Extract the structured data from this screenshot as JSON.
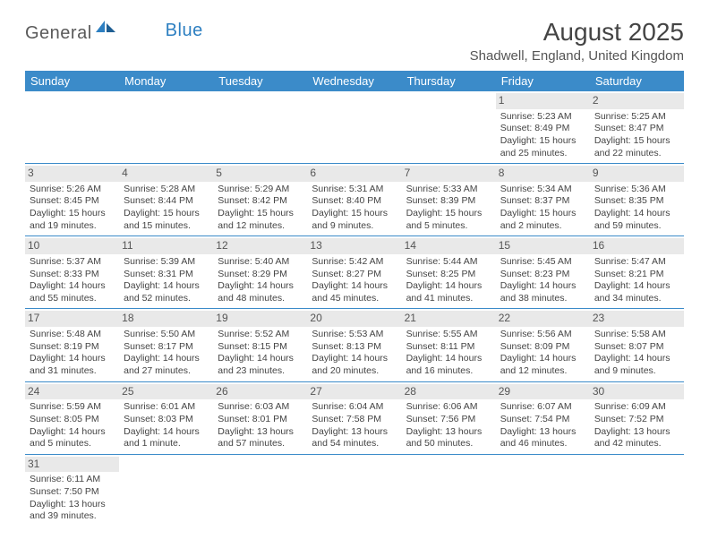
{
  "logo": {
    "part1": "General",
    "part2": "Blue"
  },
  "title": "August 2025",
  "location": "Shadwell, England, United Kingdom",
  "colors": {
    "header_bg": "#3b8bc9",
    "header_text": "#ffffff",
    "daynum_bg": "#e9e9e9",
    "row_border": "#3b8bc9",
    "logo_gray": "#5a5a5a",
    "logo_blue": "#2d7fc1"
  },
  "day_headers": [
    "Sunday",
    "Monday",
    "Tuesday",
    "Wednesday",
    "Thursday",
    "Friday",
    "Saturday"
  ],
  "weeks": [
    [
      {
        "empty": true
      },
      {
        "empty": true
      },
      {
        "empty": true
      },
      {
        "empty": true
      },
      {
        "empty": true
      },
      {
        "day": "1",
        "sunrise": "Sunrise: 5:23 AM",
        "sunset": "Sunset: 8:49 PM",
        "daylight": "Daylight: 15 hours and 25 minutes."
      },
      {
        "day": "2",
        "sunrise": "Sunrise: 5:25 AM",
        "sunset": "Sunset: 8:47 PM",
        "daylight": "Daylight: 15 hours and 22 minutes."
      }
    ],
    [
      {
        "day": "3",
        "sunrise": "Sunrise: 5:26 AM",
        "sunset": "Sunset: 8:45 PM",
        "daylight": "Daylight: 15 hours and 19 minutes."
      },
      {
        "day": "4",
        "sunrise": "Sunrise: 5:28 AM",
        "sunset": "Sunset: 8:44 PM",
        "daylight": "Daylight: 15 hours and 15 minutes."
      },
      {
        "day": "5",
        "sunrise": "Sunrise: 5:29 AM",
        "sunset": "Sunset: 8:42 PM",
        "daylight": "Daylight: 15 hours and 12 minutes."
      },
      {
        "day": "6",
        "sunrise": "Sunrise: 5:31 AM",
        "sunset": "Sunset: 8:40 PM",
        "daylight": "Daylight: 15 hours and 9 minutes."
      },
      {
        "day": "7",
        "sunrise": "Sunrise: 5:33 AM",
        "sunset": "Sunset: 8:39 PM",
        "daylight": "Daylight: 15 hours and 5 minutes."
      },
      {
        "day": "8",
        "sunrise": "Sunrise: 5:34 AM",
        "sunset": "Sunset: 8:37 PM",
        "daylight": "Daylight: 15 hours and 2 minutes."
      },
      {
        "day": "9",
        "sunrise": "Sunrise: 5:36 AM",
        "sunset": "Sunset: 8:35 PM",
        "daylight": "Daylight: 14 hours and 59 minutes."
      }
    ],
    [
      {
        "day": "10",
        "sunrise": "Sunrise: 5:37 AM",
        "sunset": "Sunset: 8:33 PM",
        "daylight": "Daylight: 14 hours and 55 minutes."
      },
      {
        "day": "11",
        "sunrise": "Sunrise: 5:39 AM",
        "sunset": "Sunset: 8:31 PM",
        "daylight": "Daylight: 14 hours and 52 minutes."
      },
      {
        "day": "12",
        "sunrise": "Sunrise: 5:40 AM",
        "sunset": "Sunset: 8:29 PM",
        "daylight": "Daylight: 14 hours and 48 minutes."
      },
      {
        "day": "13",
        "sunrise": "Sunrise: 5:42 AM",
        "sunset": "Sunset: 8:27 PM",
        "daylight": "Daylight: 14 hours and 45 minutes."
      },
      {
        "day": "14",
        "sunrise": "Sunrise: 5:44 AM",
        "sunset": "Sunset: 8:25 PM",
        "daylight": "Daylight: 14 hours and 41 minutes."
      },
      {
        "day": "15",
        "sunrise": "Sunrise: 5:45 AM",
        "sunset": "Sunset: 8:23 PM",
        "daylight": "Daylight: 14 hours and 38 minutes."
      },
      {
        "day": "16",
        "sunrise": "Sunrise: 5:47 AM",
        "sunset": "Sunset: 8:21 PM",
        "daylight": "Daylight: 14 hours and 34 minutes."
      }
    ],
    [
      {
        "day": "17",
        "sunrise": "Sunrise: 5:48 AM",
        "sunset": "Sunset: 8:19 PM",
        "daylight": "Daylight: 14 hours and 31 minutes."
      },
      {
        "day": "18",
        "sunrise": "Sunrise: 5:50 AM",
        "sunset": "Sunset: 8:17 PM",
        "daylight": "Daylight: 14 hours and 27 minutes."
      },
      {
        "day": "19",
        "sunrise": "Sunrise: 5:52 AM",
        "sunset": "Sunset: 8:15 PM",
        "daylight": "Daylight: 14 hours and 23 minutes."
      },
      {
        "day": "20",
        "sunrise": "Sunrise: 5:53 AM",
        "sunset": "Sunset: 8:13 PM",
        "daylight": "Daylight: 14 hours and 20 minutes."
      },
      {
        "day": "21",
        "sunrise": "Sunrise: 5:55 AM",
        "sunset": "Sunset: 8:11 PM",
        "daylight": "Daylight: 14 hours and 16 minutes."
      },
      {
        "day": "22",
        "sunrise": "Sunrise: 5:56 AM",
        "sunset": "Sunset: 8:09 PM",
        "daylight": "Daylight: 14 hours and 12 minutes."
      },
      {
        "day": "23",
        "sunrise": "Sunrise: 5:58 AM",
        "sunset": "Sunset: 8:07 PM",
        "daylight": "Daylight: 14 hours and 9 minutes."
      }
    ],
    [
      {
        "day": "24",
        "sunrise": "Sunrise: 5:59 AM",
        "sunset": "Sunset: 8:05 PM",
        "daylight": "Daylight: 14 hours and 5 minutes."
      },
      {
        "day": "25",
        "sunrise": "Sunrise: 6:01 AM",
        "sunset": "Sunset: 8:03 PM",
        "daylight": "Daylight: 14 hours and 1 minute."
      },
      {
        "day": "26",
        "sunrise": "Sunrise: 6:03 AM",
        "sunset": "Sunset: 8:01 PM",
        "daylight": "Daylight: 13 hours and 57 minutes."
      },
      {
        "day": "27",
        "sunrise": "Sunrise: 6:04 AM",
        "sunset": "Sunset: 7:58 PM",
        "daylight": "Daylight: 13 hours and 54 minutes."
      },
      {
        "day": "28",
        "sunrise": "Sunrise: 6:06 AM",
        "sunset": "Sunset: 7:56 PM",
        "daylight": "Daylight: 13 hours and 50 minutes."
      },
      {
        "day": "29",
        "sunrise": "Sunrise: 6:07 AM",
        "sunset": "Sunset: 7:54 PM",
        "daylight": "Daylight: 13 hours and 46 minutes."
      },
      {
        "day": "30",
        "sunrise": "Sunrise: 6:09 AM",
        "sunset": "Sunset: 7:52 PM",
        "daylight": "Daylight: 13 hours and 42 minutes."
      }
    ],
    [
      {
        "day": "31",
        "sunrise": "Sunrise: 6:11 AM",
        "sunset": "Sunset: 7:50 PM",
        "daylight": "Daylight: 13 hours and 39 minutes."
      },
      {
        "empty": true
      },
      {
        "empty": true
      },
      {
        "empty": true
      },
      {
        "empty": true
      },
      {
        "empty": true
      },
      {
        "empty": true
      }
    ]
  ]
}
